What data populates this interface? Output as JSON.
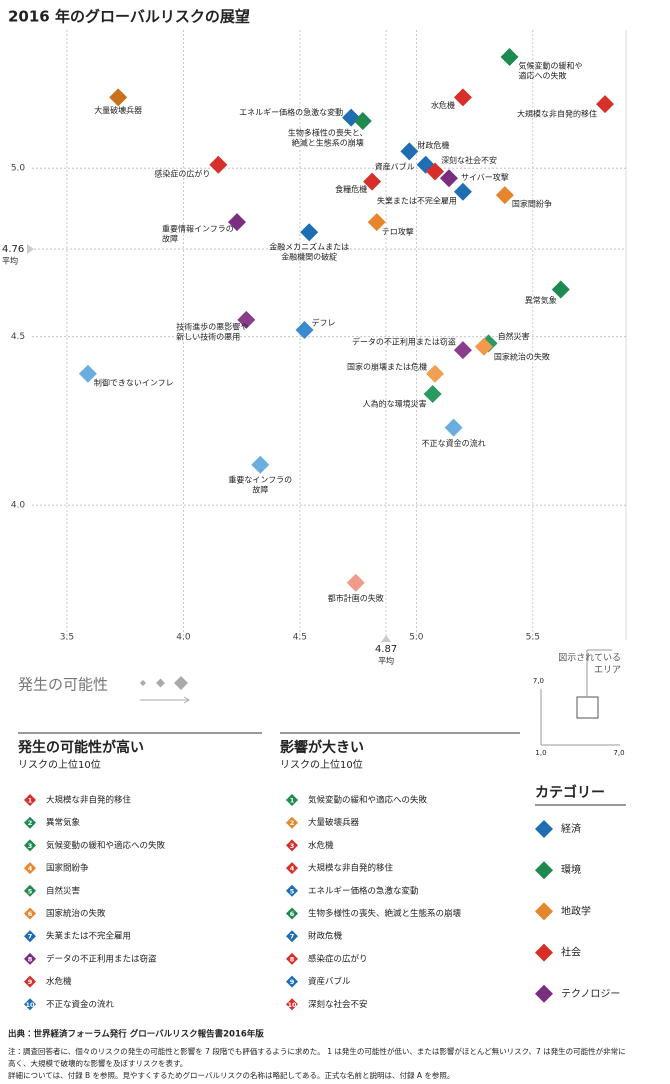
{
  "chart_data": {
    "type": "scatter",
    "title": "2016 年のグローバルリスクの展望",
    "xlabel": "発生の可能性",
    "xlim": [
      3.35,
      5.9
    ],
    "ylim": [
      3.6,
      5.41
    ],
    "xticks": [
      3.5,
      {
        "value": 4,
        "label": "4.0"
      },
      4.5,
      {
        "value": 5,
        "label": "5.0"
      },
      5.5
    ],
    "yticks": [
      {
        "value": 4,
        "label": "4.0"
      },
      4.5,
      {
        "value": 5,
        "label": "5.0"
      }
    ],
    "grid": true,
    "mean_x": 4.87,
    "mean_y": 4.76,
    "mean_label": "平均",
    "points": [
      {
        "label": [
          "気候変動の緩和や",
          "適応への失敗"
        ],
        "x": 5.4,
        "y": 5.33,
        "color": "#1e8a50"
      },
      {
        "label": [
          "大量破壊兵器"
        ],
        "x": 3.72,
        "y": 5.21,
        "color": "#c9711f"
      },
      {
        "label": [
          "水危機"
        ],
        "x": 5.2,
        "y": 5.21,
        "color": "#d7302b"
      },
      {
        "label": [
          "大規模な非自発的移住"
        ],
        "x": 5.81,
        "y": 5.19,
        "color": "#d7302b"
      },
      {
        "label": [
          "エネルギー価格の急激な変動"
        ],
        "x": 4.72,
        "y": 5.15,
        "color": "#1f6db3"
      },
      {
        "label": [
          "生物多様性の喪失と、",
          "絶滅と生態系の崩壊"
        ],
        "x": 4.77,
        "y": 5.14,
        "color": "#1e8a50"
      },
      {
        "label": [
          "財政危機"
        ],
        "x": 4.97,
        "y": 5.05,
        "color": "#1f6db3"
      },
      {
        "label": [
          "感染症の広がり"
        ],
        "x": 4.15,
        "y": 5.01,
        "color": "#d7302b"
      },
      {
        "label": [
          "資産バブル"
        ],
        "x": 5.04,
        "y": 5.01,
        "color": "#1f6db3"
      },
      {
        "label": [
          "深刻な社会不安"
        ],
        "x": 5.08,
        "y": 4.99,
        "color": "#d7302b"
      },
      {
        "label": [
          "サイバー攻撃"
        ],
        "x": 5.14,
        "y": 4.97,
        "color": "#7b2d80"
      },
      {
        "label": [
          "食糧危機"
        ],
        "x": 4.81,
        "y": 4.96,
        "color": "#d7302b"
      },
      {
        "label": [
          "失業または不完全雇用"
        ],
        "x": 5.2,
        "y": 4.93,
        "color": "#1f6db3"
      },
      {
        "label": [
          "国家間紛争"
        ],
        "x": 5.38,
        "y": 4.92,
        "color": "#e6852e"
      },
      {
        "label": [
          "テロ攻撃"
        ],
        "x": 4.83,
        "y": 4.84,
        "color": "#e6852e"
      },
      {
        "label": [
          "重要情報インフラの",
          "故障"
        ],
        "x": 4.23,
        "y": 4.84,
        "color": "#7b2d80"
      },
      {
        "label": [
          "金融メカニズムまたは",
          "金融機関の破綻"
        ],
        "x": 4.54,
        "y": 4.81,
        "color": "#1f6db3"
      },
      {
        "label": [
          "異常気象"
        ],
        "x": 5.62,
        "y": 4.64,
        "color": "#1e8a50"
      },
      {
        "label": [
          "技術進歩の悪影響や",
          "新しい技術の悪用"
        ],
        "x": 4.27,
        "y": 4.55,
        "color": "#8a3d8a"
      },
      {
        "label": [
          "デフレ"
        ],
        "x": 4.52,
        "y": 4.52,
        "color": "#3a8ad0"
      },
      {
        "label": [
          "自然災害"
        ],
        "x": 5.31,
        "y": 4.48,
        "color": "#2a9a62"
      },
      {
        "label": [
          "国家統治の失敗"
        ],
        "x": 5.29,
        "y": 4.47,
        "color": "#f09a4a"
      },
      {
        "label": [
          "データの不正利用または窃盗"
        ],
        "x": 5.2,
        "y": 4.46,
        "color": "#8a3d8a"
      },
      {
        "label": [
          "国家の崩壊または危機"
        ],
        "x": 5.08,
        "y": 4.39,
        "color": "#f0a050"
      },
      {
        "label": [
          "人為的な環境災害"
        ],
        "x": 5.07,
        "y": 4.33,
        "color": "#2a9a62"
      },
      {
        "label": [
          "制御できないインフレ"
        ],
        "x": 3.59,
        "y": 4.39,
        "color": "#6aaee0"
      },
      {
        "label": [
          "不正な資金の流れ"
        ],
        "x": 5.16,
        "y": 4.23,
        "color": "#6aaee0"
      },
      {
        "label": [
          "重要なインフラの",
          "故障"
        ],
        "x": 4.33,
        "y": 4.12,
        "color": "#6aaee0"
      },
      {
        "label": [
          "都市計画の失敗"
        ],
        "x": 4.74,
        "y": 3.77,
        "color": "#f09a8a"
      }
    ]
  },
  "inset": {
    "label": [
      "図示されている",
      "エリア"
    ],
    "min": "1,0",
    "max": "7,0"
  },
  "likelihood_list": {
    "title": "発生の可能性が高い",
    "subtitle": "リスクの上位10位",
    "items": [
      {
        "rank": 1,
        "label": "大規模な非自発的移住",
        "color": "#d7302b"
      },
      {
        "rank": 2,
        "label": "異常気象",
        "color": "#1e8a50"
      },
      {
        "rank": 3,
        "label": "気候変動の緩和や適応への失敗",
        "color": "#1e8a50"
      },
      {
        "rank": 4,
        "label": "国家間紛争",
        "color": "#e6852e"
      },
      {
        "rank": 5,
        "label": "自然災害",
        "color": "#1e8a50"
      },
      {
        "rank": 6,
        "label": "国家統治の失敗",
        "color": "#e6852e"
      },
      {
        "rank": 7,
        "label": "失業または不完全雇用",
        "color": "#1f6db3"
      },
      {
        "rank": 8,
        "label": "データの不正利用または窃盗",
        "color": "#7b2d80"
      },
      {
        "rank": 9,
        "label": "水危機",
        "color": "#d7302b"
      },
      {
        "rank": 10,
        "label": "不正な資金の流れ",
        "color": "#1f6db3"
      }
    ]
  },
  "impact_list": {
    "title": "影響が大きい",
    "subtitle": "リスクの上位10位",
    "items": [
      {
        "rank": 1,
        "label": "気候変動の緩和や適応への失敗",
        "color": "#1e8a50"
      },
      {
        "rank": 2,
        "label": "大量破壊兵器",
        "color": "#e6852e"
      },
      {
        "rank": 3,
        "label": "水危機",
        "color": "#d7302b"
      },
      {
        "rank": 4,
        "label": "大規模な非自発的移住",
        "color": "#d7302b"
      },
      {
        "rank": 5,
        "label": "エネルギー価格の急激な変動",
        "color": "#1f6db3"
      },
      {
        "rank": 6,
        "label": "生物多様性の喪失、絶滅と生態系の崩壊",
        "color": "#1e8a50"
      },
      {
        "rank": 7,
        "label": "財政危機",
        "color": "#1f6db3"
      },
      {
        "rank": 8,
        "label": "感染症の広がり",
        "color": "#d7302b"
      },
      {
        "rank": 9,
        "label": "資産バブル",
        "color": "#1f6db3"
      },
      {
        "rank": 10,
        "label": "深刻な社会不安",
        "color": "#d7302b"
      }
    ]
  },
  "categories_legend": {
    "title": "カテゴリー",
    "items": [
      {
        "name": "経済",
        "color": "#1f6db3"
      },
      {
        "name": "環境",
        "color": "#1e8a50"
      },
      {
        "name": "地政学",
        "color": "#e6852e"
      },
      {
        "name": "社会",
        "color": "#d7302b"
      },
      {
        "name": "テクノロジー",
        "color": "#7b2d80"
      }
    ]
  },
  "source": "出典：世界経済フォーラム発行 グローバルリスク報告書2016年版",
  "note": [
    "注：調査回答者に、個々のリスクの発生の可能性と影響を 7 段階でも評価するように求めた。 1 は発生の可能性が低い、または影響がほとんど無いリスク、7 は発生の可能性が非常に",
    "高く、大規模で破壊的な影響を及ぼすリスクを表す。",
    "詳細については、付録 B を参照。見やすくするためグローバルリスクの名称は略記してある。正式な名前と説明は、付録 A を参照。"
  ]
}
